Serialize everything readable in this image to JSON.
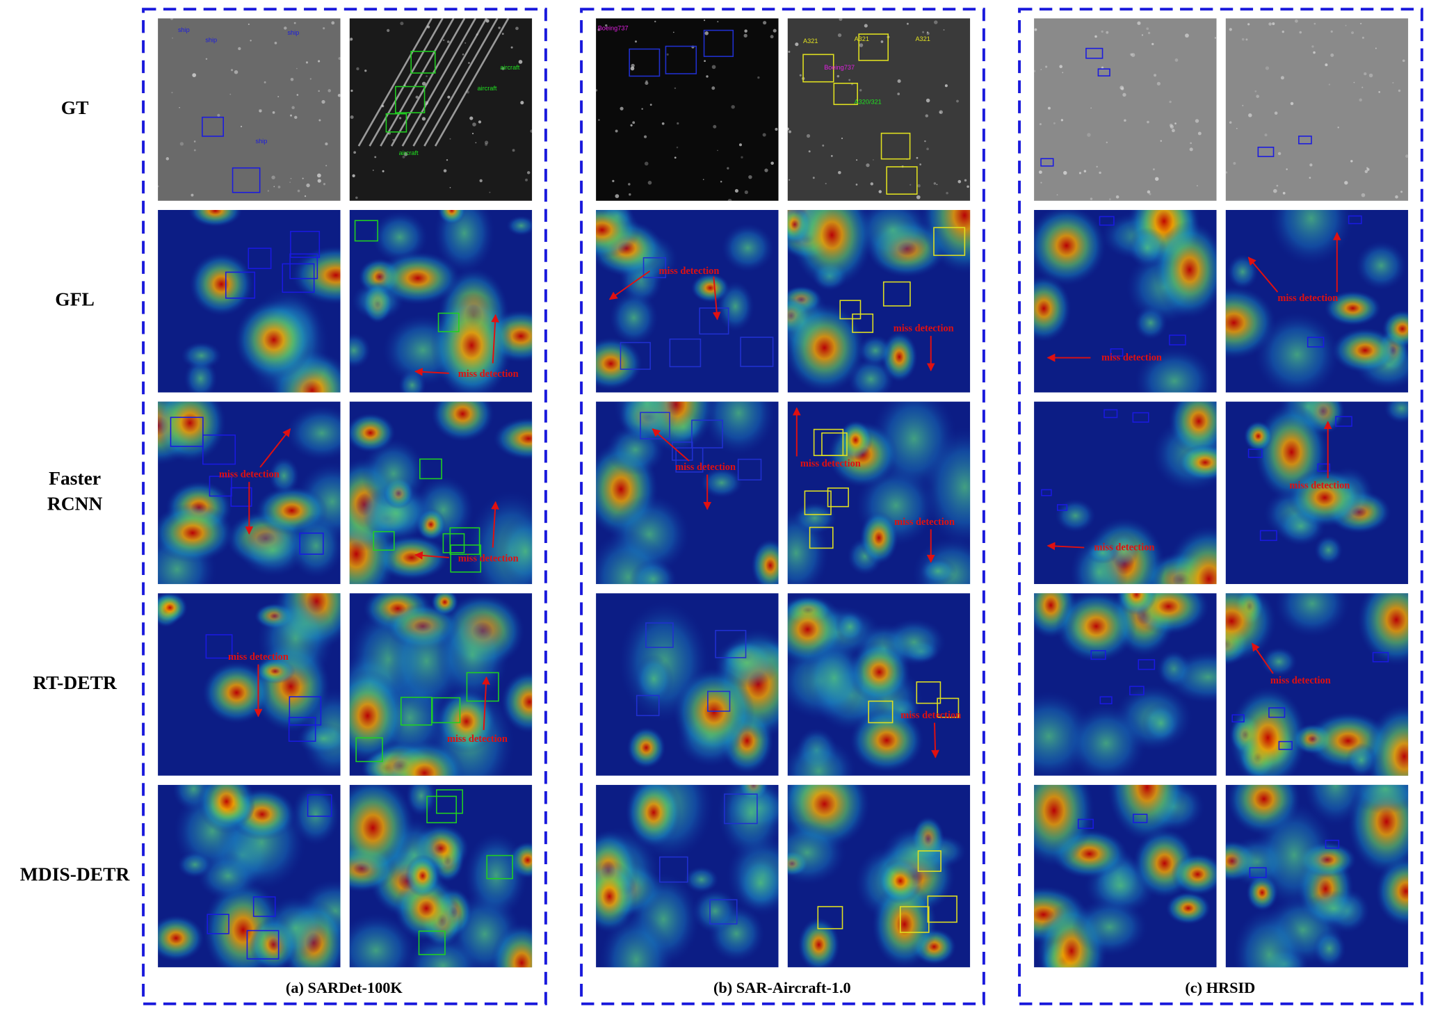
{
  "row_labels": [
    [
      "GT"
    ],
    [
      "GFL"
    ],
    [
      "Faster",
      "RCNN"
    ],
    [
      "RT-DETR"
    ],
    [
      "MDIS-DETR"
    ]
  ],
  "captions": [
    "(a) SARDet-100K",
    "(b) SAR-Aircraft-1.0",
    "(c) HRSID"
  ],
  "gt_labels": [
    "ship",
    "ship",
    "ship",
    "ship",
    "aircraft",
    "aircraft",
    "aircraft",
    "Boeing737",
    "Boeing737",
    "A321",
    "A321",
    "A321",
    "A320/321"
  ],
  "annotations": [
    "miss detection",
    "miss detection",
    "miss detection",
    "miss detection",
    "miss detection",
    "miss detection",
    "miss detection",
    "miss detection",
    "miss detection",
    "miss detection",
    "miss detection",
    "miss detection",
    "miss detection",
    "miss detection",
    "miss detection",
    "miss detection"
  ]
}
